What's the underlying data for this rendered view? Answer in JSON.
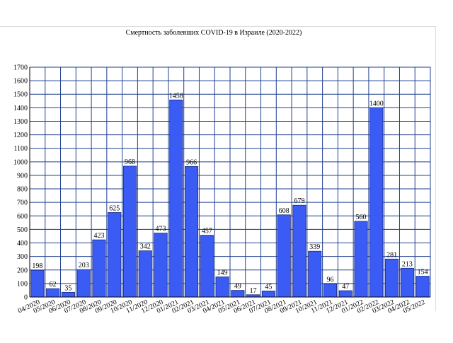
{
  "chart_data": {
    "type": "bar",
    "title": "Смертность заболевших COVID-19 в Израиле (2020-2022)",
    "categories": [
      "04/2020",
      "05/2020",
      "06/2020",
      "07/2020",
      "08/2020",
      "09/2020",
      "10/2020",
      "11/2020",
      "12/2020",
      "01/2021",
      "02/2021",
      "03/2021",
      "04/2021",
      "05/2021",
      "06/2021",
      "07/2021",
      "08/2021",
      "09/2021",
      "10/2021",
      "11/2021",
      "12/2021",
      "01/2022",
      "02/2022",
      "03/2022",
      "04/2022",
      "05/2022"
    ],
    "values": [
      198,
      62,
      35,
      203,
      423,
      625,
      968,
      342,
      473,
      1458,
      966,
      457,
      149,
      49,
      17,
      45,
      608,
      679,
      339,
      96,
      47,
      560,
      1400,
      281,
      213,
      154
    ],
    "color": "#3a5cf5",
    "ylim": [
      0,
      1700
    ],
    "yticks": [
      0,
      100,
      200,
      300,
      400,
      500,
      600,
      700,
      800,
      900,
      1000,
      1100,
      1200,
      1300,
      1400,
      1500,
      1600,
      1700
    ],
    "grid": true
  }
}
